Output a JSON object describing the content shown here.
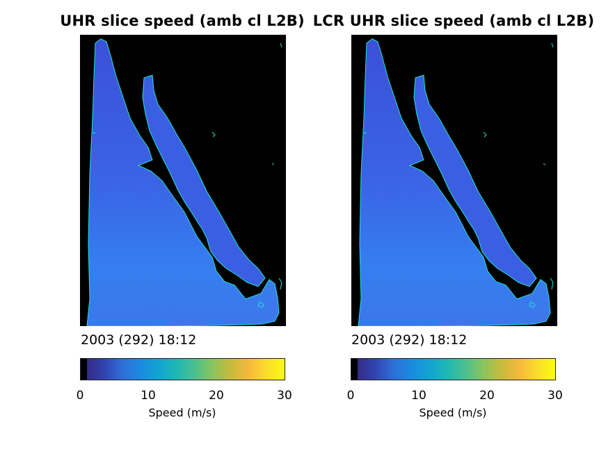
{
  "chart_data": [
    {
      "type": "heatmap",
      "title": "UHR slice speed (amb cl L2B)",
      "annotation": "2003 (292) 18:12",
      "colorbar": {
        "label": "Speed (m/s)",
        "range": [
          0,
          30
        ],
        "ticks": [
          0,
          10,
          20,
          30
        ],
        "tick_labels": [
          "0",
          "10",
          "20",
          "30"
        ],
        "colormap": "parula"
      },
      "dominant_speed_range": [
        3,
        9
      ],
      "land_mask_color": "#000000",
      "coast_outline_color": "#1ee6d6"
    },
    {
      "type": "heatmap",
      "title": "LCR UHR slice speed (amb cl L2B)",
      "annotation": "2003 (292) 18:12",
      "colorbar": {
        "label": "Speed (m/s)",
        "range": [
          0,
          30
        ],
        "ticks": [
          0,
          10,
          20,
          30
        ],
        "tick_labels": [
          "0",
          "10",
          "20",
          "30"
        ],
        "colormap": "parula"
      },
      "dominant_speed_range": [
        3,
        9
      ],
      "land_mask_color": "#000000",
      "coast_outline_color": "#1ee6d6"
    }
  ],
  "colors": {
    "parula_stops": [
      "#352a87",
      "#3145b0",
      "#2d6fd8",
      "#1a8be0",
      "#12a4d0",
      "#1fb7b4",
      "#4bc08f",
      "#8bc45e",
      "#c6bb3c",
      "#f5b83b",
      "#fadd2a",
      "#f9fb0e"
    ]
  }
}
